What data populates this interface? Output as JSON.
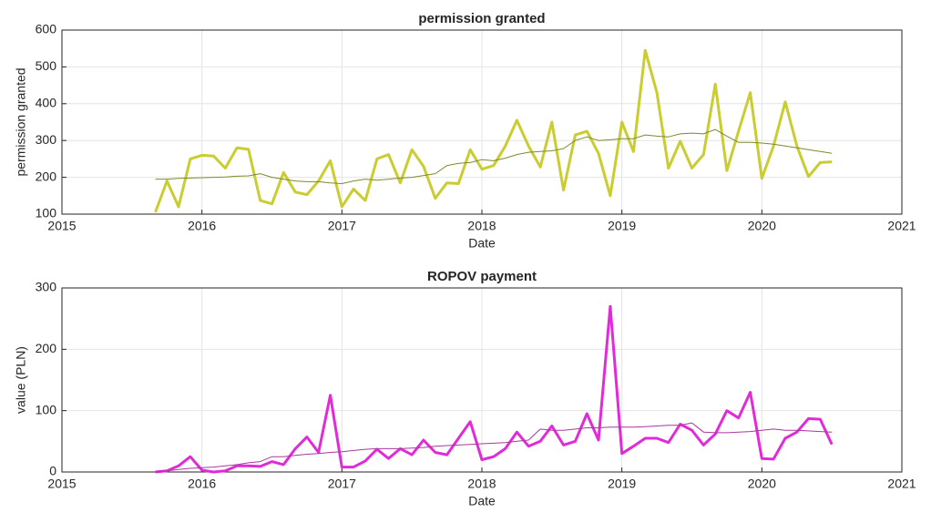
{
  "chart_data": [
    {
      "type": "line",
      "title": "permission granted",
      "xlabel": "Date",
      "ylabel": "permission granted",
      "x": [
        2015.667,
        2015.75,
        2015.833,
        2015.917,
        2016,
        2016.083,
        2016.167,
        2016.25,
        2016.333,
        2016.417,
        2016.5,
        2016.583,
        2016.667,
        2016.75,
        2016.833,
        2016.917,
        2017,
        2017.083,
        2017.167,
        2017.25,
        2017.333,
        2017.417,
        2017.5,
        2017.583,
        2017.667,
        2017.75,
        2017.833,
        2017.917,
        2018,
        2018.083,
        2018.167,
        2018.25,
        2018.333,
        2018.417,
        2018.5,
        2018.583,
        2018.667,
        2018.75,
        2018.833,
        2018.917,
        2019,
        2019.083,
        2019.167,
        2019.25,
        2019.333,
        2019.417,
        2019.5,
        2019.583,
        2019.667,
        2019.75,
        2019.833,
        2019.917,
        2020,
        2020.083,
        2020.167,
        2020.25,
        2020.333,
        2020.417,
        2020.5
      ],
      "series": [
        {
          "color": "#c9cd2f",
          "values": [
            105,
            190,
            120,
            250,
            260,
            258,
            225,
            280,
            276,
            137,
            128,
            213,
            160,
            153,
            190,
            245,
            120,
            168,
            137,
            250,
            262,
            185,
            275,
            230,
            143,
            185,
            183,
            275,
            222,
            232,
            285,
            355,
            285,
            228,
            350,
            165,
            315,
            325,
            265,
            150,
            350,
            270,
            545,
            430,
            225,
            298,
            225,
            262,
            453,
            218,
            325,
            430,
            197,
            285,
            405,
            285,
            202,
            240,
            242
          ]
        },
        {
          "color": "#7f8a2a",
          "values": [
            195,
            195,
            197,
            198,
            199,
            200,
            201,
            203,
            204,
            210,
            200,
            195,
            190,
            188,
            188,
            185,
            183,
            190,
            195,
            192,
            195,
            198,
            200,
            205,
            210,
            232,
            238,
            240,
            248,
            245,
            252,
            262,
            268,
            270,
            272,
            278,
            300,
            310,
            300,
            302,
            305,
            305,
            315,
            312,
            310,
            318,
            320,
            318,
            330,
            312,
            295,
            295,
            293,
            290,
            285,
            280,
            275,
            270,
            265
          ]
        }
      ],
      "xlim": [
        2015,
        2021
      ],
      "xticks": [
        2015,
        2016,
        2017,
        2018,
        2019,
        2020,
        2021
      ],
      "ylim": [
        100,
        600
      ],
      "yticks": [
        100,
        200,
        300,
        400,
        500,
        600
      ],
      "grid": true
    },
    {
      "type": "line",
      "title": "ROPOV payment",
      "xlabel": "Date",
      "ylabel": "value (PLN)",
      "x": [
        2015.667,
        2015.75,
        2015.833,
        2015.917,
        2016,
        2016.083,
        2016.167,
        2016.25,
        2016.333,
        2016.417,
        2016.5,
        2016.583,
        2016.667,
        2016.75,
        2016.833,
        2016.917,
        2017,
        2017.083,
        2017.167,
        2017.25,
        2017.333,
        2017.417,
        2017.5,
        2017.583,
        2017.667,
        2017.75,
        2017.833,
        2017.917,
        2018,
        2018.083,
        2018.167,
        2018.25,
        2018.333,
        2018.417,
        2018.5,
        2018.583,
        2018.667,
        2018.75,
        2018.833,
        2018.917,
        2019,
        2019.083,
        2019.167,
        2019.25,
        2019.333,
        2019.417,
        2019.5,
        2019.583,
        2019.667,
        2019.75,
        2019.833,
        2019.917,
        2020,
        2020.083,
        2020.167,
        2020.25,
        2020.333,
        2020.417,
        2020.5
      ],
      "series": [
        {
          "color": "#e22bd8",
          "values": [
            0,
            2,
            10,
            25,
            3,
            0,
            2,
            10,
            10,
            9,
            17,
            12,
            38,
            57,
            32,
            125,
            8,
            8,
            18,
            37,
            22,
            38,
            28,
            52,
            32,
            28,
            55,
            82,
            20,
            25,
            38,
            65,
            42,
            50,
            75,
            44,
            50,
            95,
            52,
            270,
            30,
            42,
            55,
            55,
            48,
            78,
            68,
            44,
            62,
            100,
            88,
            130,
            22,
            21,
            55,
            65,
            87,
            86,
            45
          ]
        },
        {
          "color": "#a8399e",
          "values": [
            0,
            2,
            4,
            6,
            7,
            8,
            10,
            12,
            15,
            17,
            25,
            25,
            27,
            29,
            30,
            32,
            33,
            35,
            37,
            38,
            38,
            38,
            39,
            40,
            42,
            43,
            44,
            45,
            46,
            47,
            48,
            50,
            52,
            70,
            68,
            68,
            70,
            72,
            72,
            73,
            73,
            73,
            74,
            75,
            76,
            76,
            80,
            65,
            64,
            64,
            65,
            66,
            68,
            70,
            68,
            68,
            67,
            66,
            65
          ]
        }
      ],
      "xlim": [
        2015,
        2021
      ],
      "xticks": [
        2015,
        2016,
        2017,
        2018,
        2019,
        2020,
        2021
      ],
      "ylim": [
        0,
        300
      ],
      "yticks": [
        0,
        100,
        200,
        300
      ],
      "grid": true
    }
  ]
}
